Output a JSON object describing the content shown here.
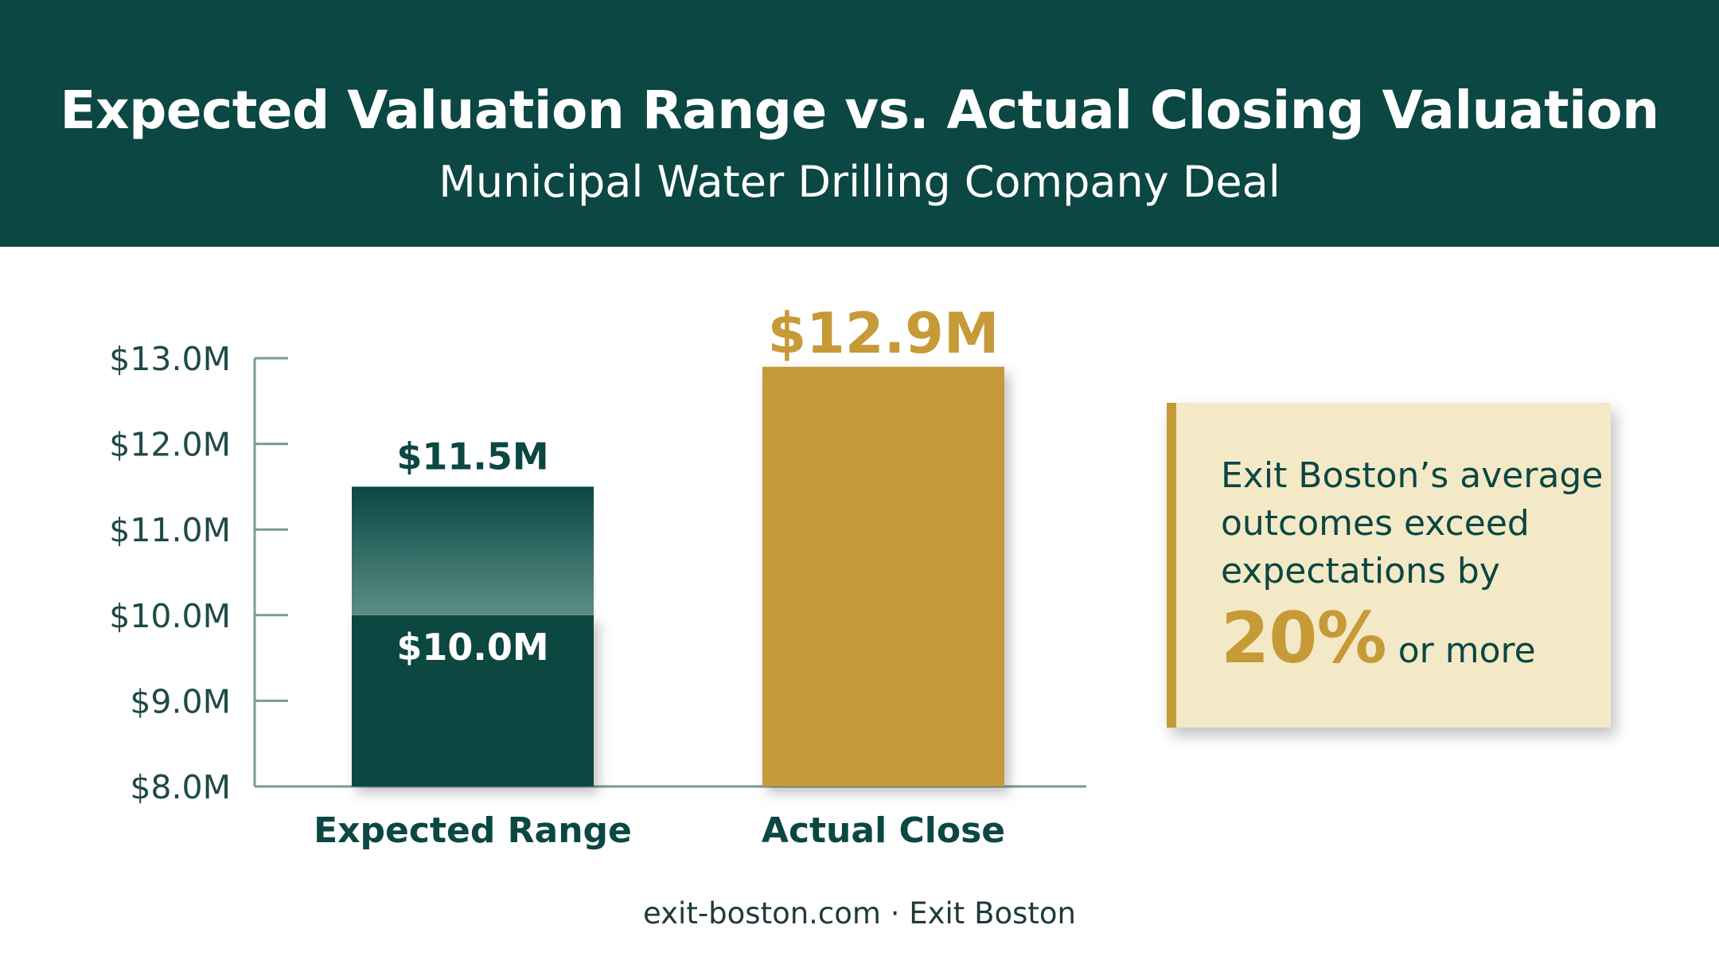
{
  "header": {
    "title": "Expected Valuation Range vs. Actual Closing Valuation",
    "subtitle": "Municipal Water Drilling Company Deal"
  },
  "chart_data": {
    "type": "bar",
    "categories": [
      "Expected Range",
      "Actual Close"
    ],
    "ylim": [
      8.0,
      13.0
    ],
    "yticks": [
      8.0,
      9.0,
      10.0,
      11.0,
      12.0,
      13.0
    ],
    "ytick_labels": [
      "$8.0M",
      "$9.0M",
      "$10.0M",
      "$11.0M",
      "$12.0M",
      "$13.0M"
    ],
    "bars": [
      {
        "category": "Expected Range",
        "low": 10.0,
        "high": 11.5,
        "low_label": "$10.0M",
        "high_label": "$11.5M",
        "color": "#0b4743",
        "range_color": "#5a8e87"
      },
      {
        "category": "Actual Close",
        "value": 12.9,
        "label": "$12.9M",
        "color": "#c69a37"
      }
    ],
    "grid": false
  },
  "callout": {
    "text": "Exit Boston’s average outcomes exceed expectations by",
    "highlight": "20%",
    "suffix": "or more",
    "accent_color": "#c69a37",
    "background_color": "#f4e9c6"
  },
  "footer": {
    "text": "exit-boston.com · Exit Boston"
  },
  "colors": {
    "header_bg": "#0b4743",
    "primary": "#0b4743",
    "accent": "#c69a37"
  }
}
